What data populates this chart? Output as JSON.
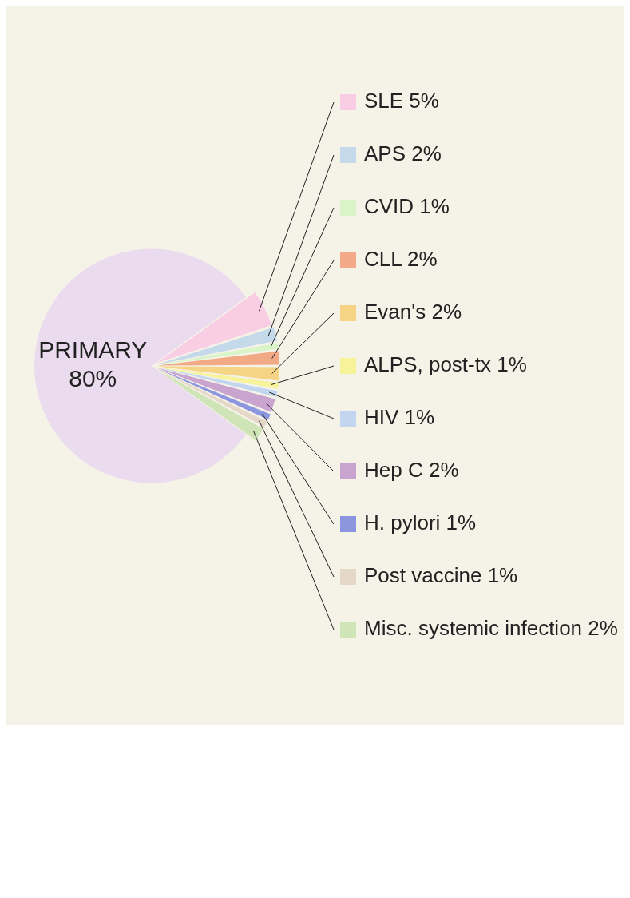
{
  "chart_data": {
    "type": "pie",
    "categories": [
      "PRIMARY",
      "SLE",
      "APS",
      "CVID",
      "CLL",
      "Evan's",
      "ALPS, post-tx",
      "HIV",
      "Hep C",
      "H. pylori",
      "Post vaccine",
      "Misc. systemic infection"
    ],
    "values": [
      80,
      5,
      2,
      1,
      2,
      2,
      1,
      1,
      2,
      1,
      1,
      2
    ],
    "value_labels": [
      "80%",
      "5%",
      "2%",
      "1%",
      "2%",
      "2%",
      "1%",
      "1%",
      "2%",
      "1%",
      "1%",
      "2%"
    ],
    "colors": [
      "#eadcee",
      "#f9cde3",
      "#c4d9ea",
      "#d9f5c8",
      "#f2a986",
      "#f6d486",
      "#f7f39a",
      "#c2d6ef",
      "#c9a4cf",
      "#8c96df",
      "#e6d8c9",
      "#cfe5b8"
    ],
    "legend": "right"
  }
}
